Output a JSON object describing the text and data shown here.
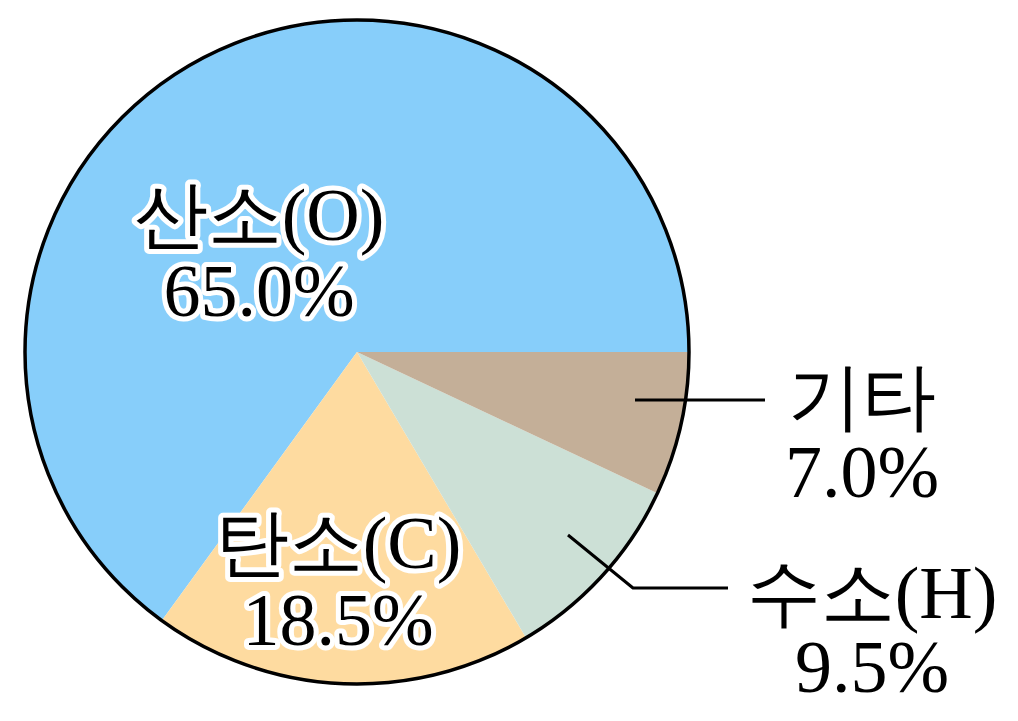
{
  "chart_data": {
    "type": "pie",
    "categories": [
      "산소(O)",
      "탄소(C)",
      "수소(H)",
      "기타"
    ],
    "values": [
      65.0,
      18.5,
      9.5,
      7.0
    ],
    "colors": [
      "#87cefa",
      "#fedba0",
      "#cce0d6",
      "#c4af98"
    ],
    "value_labels": [
      "65.0%",
      "18.5%",
      "9.5%",
      "7.0%"
    ]
  }
}
